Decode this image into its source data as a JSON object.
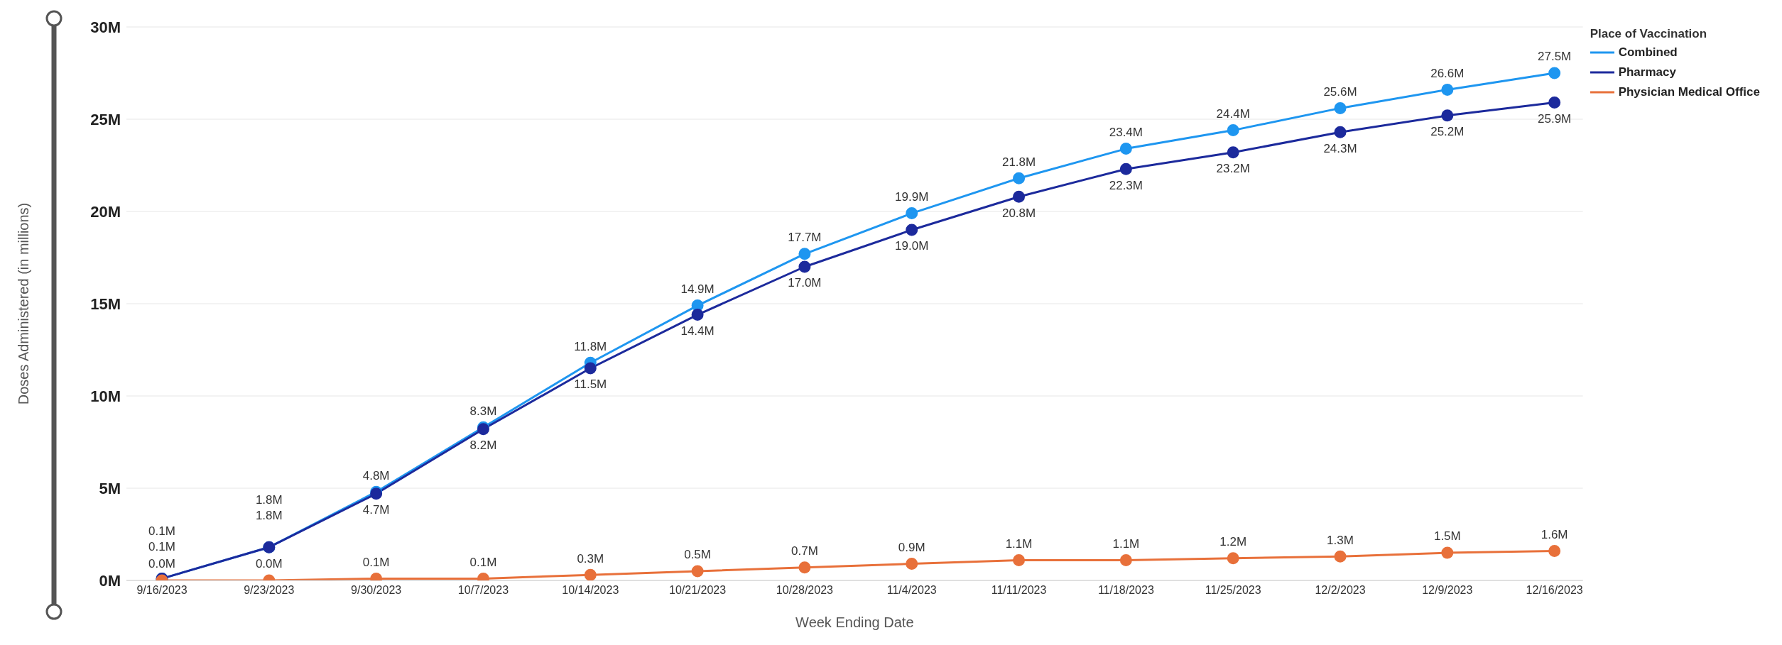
{
  "chart_data": {
    "type": "line",
    "xlabel": "Week Ending Date",
    "ylabel": "Doses Administered (in millions)",
    "legend_title": "Place of Vaccination",
    "categories": [
      "9/16/2023",
      "9/23/2023",
      "9/30/2023",
      "10/7/2023",
      "10/14/2023",
      "10/21/2023",
      "10/28/2023",
      "11/4/2023",
      "11/11/2023",
      "11/18/2023",
      "11/25/2023",
      "12/2/2023",
      "12/9/2023",
      "12/16/2023"
    ],
    "series": [
      {
        "name": "Combined",
        "color": "#1e96f0",
        "values": [
          0.1,
          1.8,
          4.8,
          8.3,
          11.8,
          14.9,
          17.7,
          19.9,
          21.8,
          23.4,
          24.4,
          25.6,
          26.6,
          27.5
        ],
        "value_labels": [
          "0.1M",
          "1.8M",
          "4.8M",
          "8.3M",
          "11.8M",
          "14.9M",
          "17.7M",
          "19.9M",
          "21.8M",
          "23.4M",
          "24.4M",
          "25.6M",
          "26.6M",
          "27.5M"
        ]
      },
      {
        "name": "Pharmacy",
        "color": "#1c2a9c",
        "values": [
          0.1,
          1.8,
          4.7,
          8.2,
          11.5,
          14.4,
          17.0,
          19.0,
          20.8,
          22.3,
          23.2,
          24.3,
          25.2,
          25.9
        ],
        "value_labels": [
          "0.1M",
          "1.8M",
          "4.7M",
          "8.2M",
          "11.5M",
          "14.4M",
          "17.0M",
          "19.0M",
          "20.8M",
          "22.3M",
          "23.2M",
          "24.3M",
          "25.2M",
          "25.9M"
        ]
      },
      {
        "name": "Physician Medical Office",
        "color": "#e8703a",
        "values": [
          0.0,
          0.0,
          0.1,
          0.1,
          0.3,
          0.5,
          0.7,
          0.9,
          1.1,
          1.1,
          1.2,
          1.3,
          1.5,
          1.6
        ],
        "value_labels": [
          "0.0M",
          "0.0M",
          "0.1M",
          "0.1M",
          "0.3M",
          "0.5M",
          "0.7M",
          "0.9M",
          "1.1M",
          "1.1M",
          "1.2M",
          "1.3M",
          "1.5M",
          "1.6M"
        ]
      }
    ],
    "ylim": [
      0,
      30
    ],
    "yticks": [
      {
        "value": 0,
        "label": "0M"
      },
      {
        "value": 5,
        "label": "5M"
      },
      {
        "value": 10,
        "label": "10M"
      },
      {
        "value": 15,
        "label": "15M"
      },
      {
        "value": 20,
        "label": "20M"
      },
      {
        "value": 25,
        "label": "25M"
      },
      {
        "value": 30,
        "label": "30M"
      }
    ],
    "grid": "y",
    "legend": "top right",
    "marker": "circle",
    "line_style": "solid"
  }
}
